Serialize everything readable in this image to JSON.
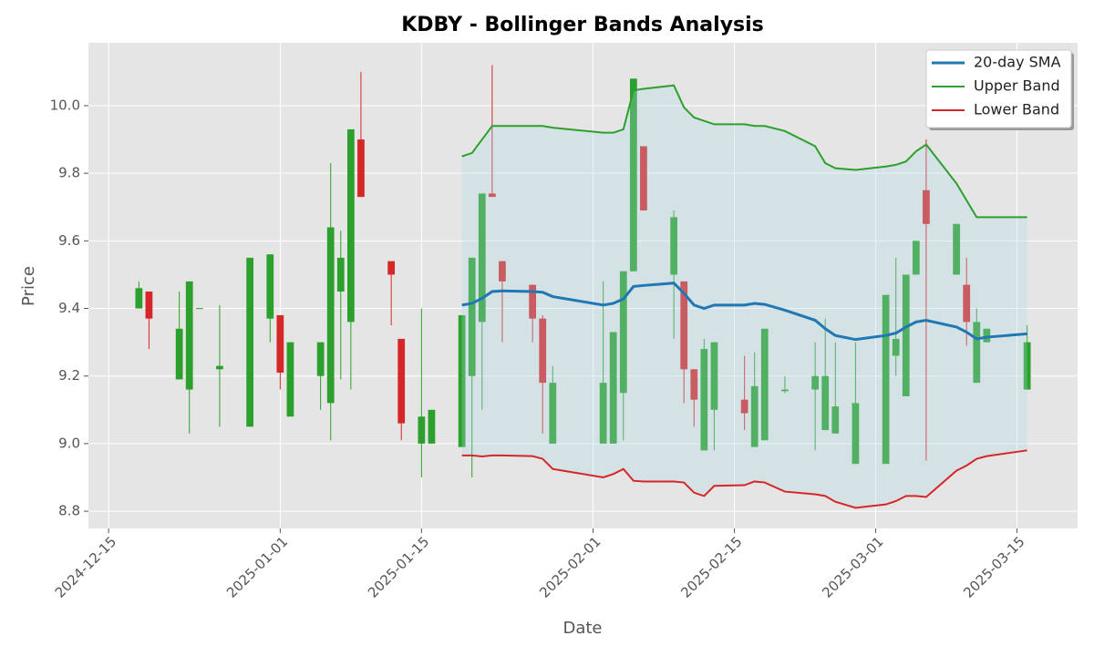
{
  "chart_data": {
    "type": "candlestick",
    "title": "KDBY - Bollinger Bands Analysis",
    "xlabel": "Date",
    "ylabel": "Price",
    "x": [
      "2024-12-18",
      "2024-12-19",
      "2024-12-22",
      "2024-12-23",
      "2024-12-24",
      "2024-12-26",
      "2024-12-29",
      "2024-12-31",
      "2025-01-01",
      "2025-01-02",
      "2025-01-05",
      "2025-01-06",
      "2025-01-07",
      "2025-01-08",
      "2025-01-09",
      "2025-01-12",
      "2025-01-13",
      "2025-01-15",
      "2025-01-16",
      "2025-01-19",
      "2025-01-20",
      "2025-01-21",
      "2025-01-22",
      "2025-01-23",
      "2025-01-26",
      "2025-01-27",
      "2025-01-28",
      "2025-02-02",
      "2025-02-03",
      "2025-02-04",
      "2025-02-05",
      "2025-02-06",
      "2025-02-09",
      "2025-02-10",
      "2025-02-11",
      "2025-02-12",
      "2025-02-13",
      "2025-02-16",
      "2025-02-17",
      "2025-02-18",
      "2025-02-20",
      "2025-02-23",
      "2025-02-24",
      "2025-02-25",
      "2025-02-27",
      "2025-03-02",
      "2025-03-03",
      "2025-03-04",
      "2025-03-05",
      "2025-03-06",
      "2025-03-09",
      "2025-03-10",
      "2025-03-11",
      "2025-03-12",
      "2025-03-16"
    ],
    "open": [
      9.4,
      9.45,
      9.19,
      9.16,
      9.399,
      9.22,
      9.05,
      9.37,
      9.38,
      9.08,
      9.2,
      9.12,
      9.45,
      9.36,
      9.9,
      9.54,
      9.31,
      9.0,
      9.0,
      8.99,
      9.2,
      9.36,
      9.74,
      9.54,
      9.47,
      9.37,
      9.0,
      9.0,
      9.0,
      9.15,
      9.51,
      9.88,
      9.5,
      9.48,
      9.22,
      8.98,
      9.1,
      9.13,
      8.99,
      9.01,
      9.155,
      9.16,
      9.04,
      9.03,
      8.94,
      8.94,
      9.26,
      9.14,
      9.5,
      9.75,
      9.5,
      9.47,
      9.18,
      9.3,
      9.16
    ],
    "high": [
      9.48,
      9.45,
      9.45,
      9.48,
      9.4,
      9.41,
      9.55,
      9.56,
      9.38,
      9.3,
      9.3,
      9.83,
      9.63,
      9.93,
      10.1,
      9.54,
      9.31,
      9.4,
      9.1,
      9.38,
      9.55,
      9.74,
      10.12,
      9.54,
      9.47,
      9.38,
      9.23,
      9.48,
      9.33,
      9.51,
      10.08,
      9.88,
      9.69,
      9.48,
      9.22,
      9.31,
      9.3,
      9.26,
      9.27,
      9.34,
      9.2,
      9.3,
      9.37,
      9.3,
      9.3,
      9.44,
      9.55,
      9.5,
      9.6,
      9.9,
      9.65,
      9.55,
      9.4,
      9.34,
      9.35
    ],
    "low": [
      9.4,
      9.28,
      9.19,
      9.03,
      9.4,
      9.05,
      9.05,
      9.3,
      9.16,
      9.08,
      9.1,
      9.01,
      9.19,
      9.16,
      9.73,
      9.35,
      9.01,
      8.9,
      9.0,
      8.99,
      8.9,
      9.1,
      9.73,
      9.3,
      9.3,
      9.03,
      9.0,
      9.0,
      9.0,
      9.01,
      9.51,
      9.69,
      9.31,
      9.12,
      9.05,
      8.98,
      8.98,
      9.04,
      8.99,
      9.01,
      9.15,
      8.98,
      9.04,
      9.03,
      8.94,
      8.94,
      9.2,
      9.14,
      9.5,
      8.95,
      9.5,
      9.29,
      9.18,
      9.3,
      9.16
    ],
    "close": [
      9.46,
      9.37,
      9.34,
      9.48,
      9.401,
      9.23,
      9.55,
      9.56,
      9.21,
      9.3,
      9.3,
      9.64,
      9.55,
      9.93,
      9.73,
      9.5,
      9.06,
      9.08,
      9.1,
      9.38,
      9.55,
      9.74,
      9.73,
      9.48,
      9.37,
      9.18,
      9.18,
      9.18,
      9.33,
      9.51,
      10.08,
      9.69,
      9.67,
      9.22,
      9.13,
      9.28,
      9.3,
      9.09,
      9.17,
      9.34,
      9.16,
      9.2,
      9.2,
      9.11,
      9.12,
      9.44,
      9.31,
      9.5,
      9.6,
      9.65,
      9.65,
      9.36,
      9.36,
      9.34,
      9.3
    ],
    "up_color": "#2ca02c",
    "down_color": "#d62728",
    "series": [
      {
        "name": "20-day SMA",
        "color": "#1f77b4",
        "values": [
          null,
          null,
          null,
          null,
          null,
          null,
          null,
          null,
          null,
          null,
          null,
          null,
          null,
          null,
          null,
          null,
          null,
          null,
          null,
          9.41,
          9.415,
          9.43,
          9.45,
          9.452,
          9.45,
          9.448,
          9.435,
          9.41,
          9.415,
          9.428,
          9.465,
          9.468,
          9.475,
          9.445,
          9.41,
          9.4,
          9.41,
          9.41,
          9.415,
          9.412,
          9.395,
          9.365,
          9.34,
          9.32,
          9.308,
          9.32,
          9.327,
          9.345,
          9.36,
          9.365,
          9.345,
          9.33,
          9.31,
          9.315,
          9.325
        ]
      },
      {
        "name": "Upper Band",
        "color": "#2ca02c",
        "values": [
          null,
          null,
          null,
          null,
          null,
          null,
          null,
          null,
          null,
          null,
          null,
          null,
          null,
          null,
          null,
          null,
          null,
          null,
          null,
          9.85,
          9.86,
          9.9,
          9.94,
          9.94,
          9.94,
          9.94,
          9.935,
          9.92,
          9.92,
          9.93,
          10.045,
          10.05,
          10.06,
          9.995,
          9.965,
          9.955,
          9.945,
          9.945,
          9.94,
          9.94,
          9.925,
          9.88,
          9.83,
          9.815,
          9.81,
          9.82,
          9.825,
          9.835,
          9.865,
          9.885,
          9.77,
          9.72,
          9.67,
          9.67,
          9.67
        ]
      },
      {
        "name": "Lower Band",
        "color": "#d62728",
        "values": [
          null,
          null,
          null,
          null,
          null,
          null,
          null,
          null,
          null,
          null,
          null,
          null,
          null,
          null,
          null,
          null,
          null,
          null,
          null,
          8.965,
          8.965,
          8.962,
          8.965,
          8.965,
          8.963,
          8.955,
          8.925,
          8.9,
          8.91,
          8.925,
          8.89,
          8.888,
          8.888,
          8.885,
          8.855,
          8.845,
          8.875,
          8.877,
          8.888,
          8.885,
          8.858,
          8.85,
          8.845,
          8.828,
          8.81,
          8.82,
          8.83,
          8.845,
          8.845,
          8.842,
          8.92,
          8.935,
          8.955,
          8.963,
          8.98
        ]
      }
    ],
    "band_fill": "#add8e6",
    "xlim": [
      "2024-12-13",
      "2025-03-21"
    ],
    "xticks": [
      "2024-12-15",
      "2025-01-01",
      "2025-01-15",
      "2025-02-01",
      "2025-02-15",
      "2025-03-01",
      "2025-03-15"
    ],
    "ylim": [
      8.749,
      10.186
    ],
    "yticks": [
      8.8,
      {
        "value": 9,
        "label": "9.0"
      },
      9.2,
      9.4,
      9.6,
      9.8,
      {
        "value": 10,
        "label": "10.0"
      }
    ],
    "grid": true,
    "legend": "upper right"
  }
}
